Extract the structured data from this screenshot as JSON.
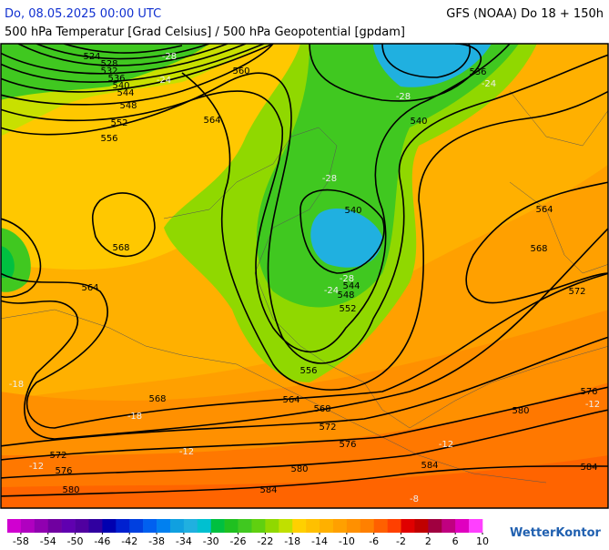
{
  "header": {
    "date": "Do, 08.05.2025 00:00 UTC",
    "model": "GFS (NOAA) Do 18 + 150h",
    "subtitle": "500 hPa Temperatur [Grad Celsius] / 500 hPa Geopotential [gpdam]"
  },
  "contour_labels": [
    "524",
    "528",
    "532",
    "536",
    "540",
    "544",
    "548",
    "552",
    "556",
    "560",
    "564",
    "568",
    "564",
    "568",
    "564",
    "568",
    "572",
    "576",
    "580",
    "580",
    "576",
    "572",
    "584",
    "584",
    "584",
    "580",
    "576",
    "572",
    "568",
    "564",
    "556",
    "552",
    "548",
    "544",
    "540",
    "540",
    "536"
  ],
  "temperature_labels": [
    "-28",
    "-24",
    "-28",
    "-28",
    "-24",
    "-28",
    "-24",
    "-18",
    "-12",
    "-12",
    "-12",
    "-12",
    "-18",
    "-8"
  ],
  "scale": {
    "range": [
      -60,
      10
    ],
    "ticks": [
      -58,
      -54,
      -50,
      -46,
      -42,
      -38,
      -34,
      -30,
      -26,
      -22,
      -18,
      -14,
      -10,
      -6,
      -2,
      2,
      6,
      10
    ],
    "colors": [
      "#d000d0",
      "#b000c0",
      "#9000b0",
      "#7000a0",
      "#6000b0",
      "#5000a0",
      "#3000a0",
      "#0000b0",
      "#0020d0",
      "#0040e0",
      "#0060f0",
      "#0080f0",
      "#10a0e0",
      "#20b0e0",
      "#00c0d0",
      "#00c040",
      "#20c020",
      "#40c820",
      "#60d010",
      "#90d800",
      "#c0e000",
      "#ffd000",
      "#ffc000",
      "#ffb000",
      "#ffa000",
      "#ff9000",
      "#ff8000",
      "#ff6000",
      "#ff4000",
      "#e00000",
      "#c00000",
      "#a00040",
      "#c00080",
      "#e000c0",
      "#ff40ff"
    ]
  },
  "logo": "WetterKontor"
}
